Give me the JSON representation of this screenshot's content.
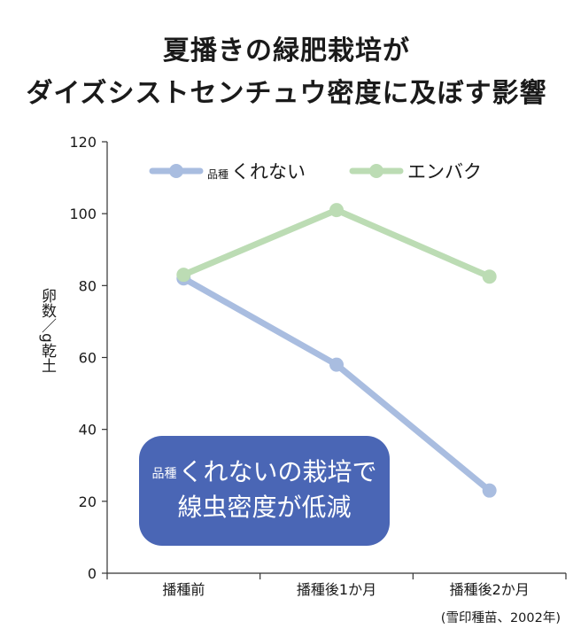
{
  "chart_data": {
    "type": "line",
    "title_line1": "夏播きの緑肥栽培が",
    "title_line2": "ダイズシストセンチュウ密度に及ぼす影響",
    "ylabel": "卵数／g乾土",
    "categories": [
      "播種前",
      "播種後1か月",
      "播種後2か月"
    ],
    "ylim": [
      0,
      120
    ],
    "yticks": [
      0,
      20,
      40,
      60,
      80,
      100,
      120
    ],
    "series": [
      {
        "name_prefix": "品種",
        "name": "くれない",
        "color": "#a9bde0",
        "values": [
          82,
          58,
          23
        ]
      },
      {
        "name": "エンバク",
        "color": "#bcdcb4",
        "values": [
          83,
          101,
          82.5
        ]
      }
    ],
    "legend_position": "top",
    "annotation": {
      "prefix": "品種",
      "line1": "くれないの栽培で",
      "line2": "線虫密度が低減"
    },
    "source": "(雪印種苗、2002年)"
  }
}
